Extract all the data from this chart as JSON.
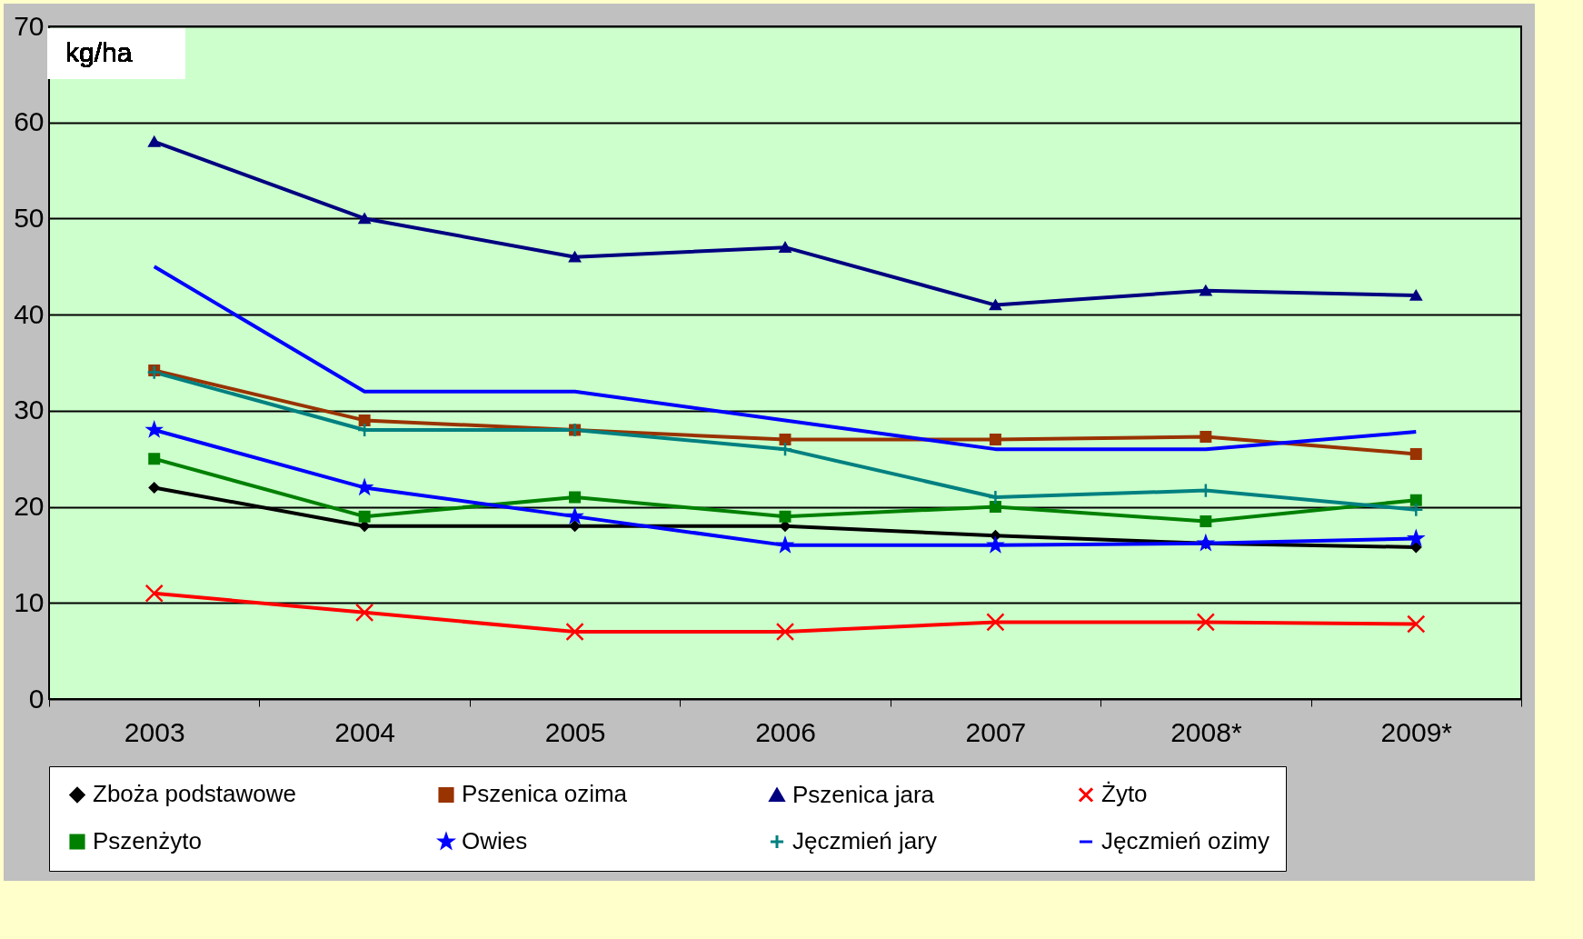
{
  "chart_data": {
    "type": "line",
    "ylabel": "kg/ha",
    "categories": [
      "2003",
      "2004",
      "2005",
      "2006",
      "2007",
      "2008*",
      "2009*"
    ],
    "ylim": [
      0,
      70
    ],
    "yticks": [
      0,
      10,
      20,
      30,
      40,
      50,
      60,
      70
    ],
    "grid": "y",
    "legend": "bottom",
    "series": [
      {
        "name": "Zboża podstawowe",
        "color": "#000000",
        "marker": "diamond",
        "values": [
          22,
          18,
          18,
          18,
          17,
          16.2,
          15.8
        ]
      },
      {
        "name": "Pszenica ozima",
        "color": "#993300",
        "marker": "square",
        "values": [
          34.2,
          29,
          28,
          27,
          27,
          27.3,
          25.5
        ]
      },
      {
        "name": "Pszenica jara",
        "color": "#000080",
        "marker": "triangle",
        "values": [
          58,
          50,
          46,
          47,
          41,
          42.5,
          42
        ]
      },
      {
        "name": "Żyto",
        "color": "#ff0000",
        "marker": "cross",
        "values": [
          11,
          9,
          7,
          7,
          8,
          8,
          7.8
        ]
      },
      {
        "name": "Pszenżyto",
        "color": "#008000",
        "marker": "square",
        "values": [
          25,
          19,
          21,
          19,
          20,
          18.5,
          20.7
        ]
      },
      {
        "name": "Owies",
        "color": "#0000ff",
        "marker": "star",
        "values": [
          28,
          22,
          19,
          16,
          16,
          16.2,
          16.7
        ]
      },
      {
        "name": "Jęczmień jary",
        "color": "#008080",
        "marker": "plus",
        "values": [
          34,
          28,
          28,
          26,
          21,
          21.7,
          19.7
        ]
      },
      {
        "name": "Jęczmień ozimy",
        "color": "#0000ff",
        "marker": "none",
        "values": [
          45,
          32,
          32,
          29,
          26,
          26,
          27.8
        ]
      }
    ]
  }
}
